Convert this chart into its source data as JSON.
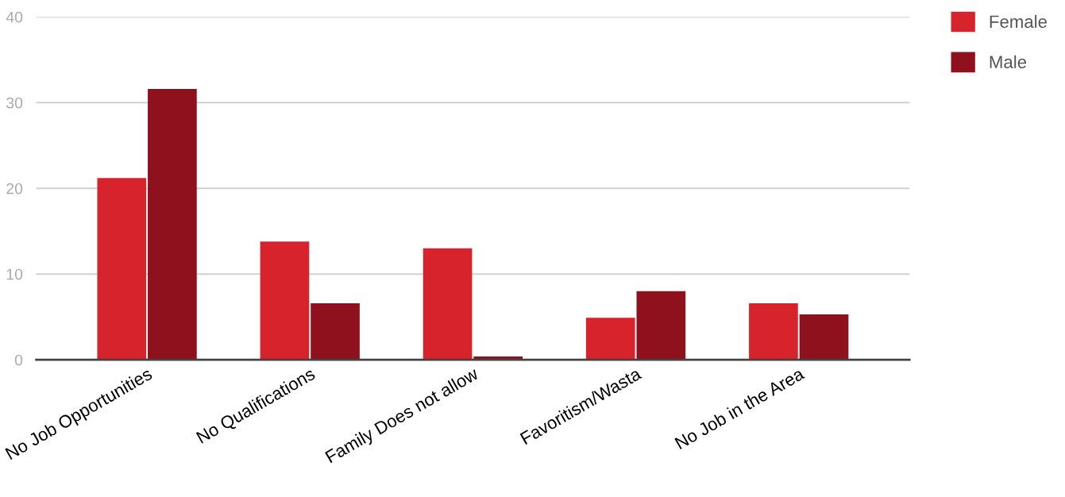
{
  "chart_data": {
    "type": "bar",
    "categories": [
      "No Job Opportunities",
      "No Qualifications",
      "Family Does not allow",
      "Favoritism/Wasta",
      "No Job in the Area"
    ],
    "series": [
      {
        "name": "Female",
        "color": "#d7232b",
        "values": [
          21.2,
          13.8,
          13.0,
          4.9,
          6.6
        ]
      },
      {
        "name": "Male",
        "color": "#8f111e",
        "values": [
          31.6,
          6.6,
          0.4,
          8.0,
          5.3
        ]
      }
    ],
    "ylim": [
      0,
      40
    ],
    "yticks": [
      0,
      10,
      20,
      30,
      40
    ],
    "grid": "y",
    "legend": "top right"
  }
}
